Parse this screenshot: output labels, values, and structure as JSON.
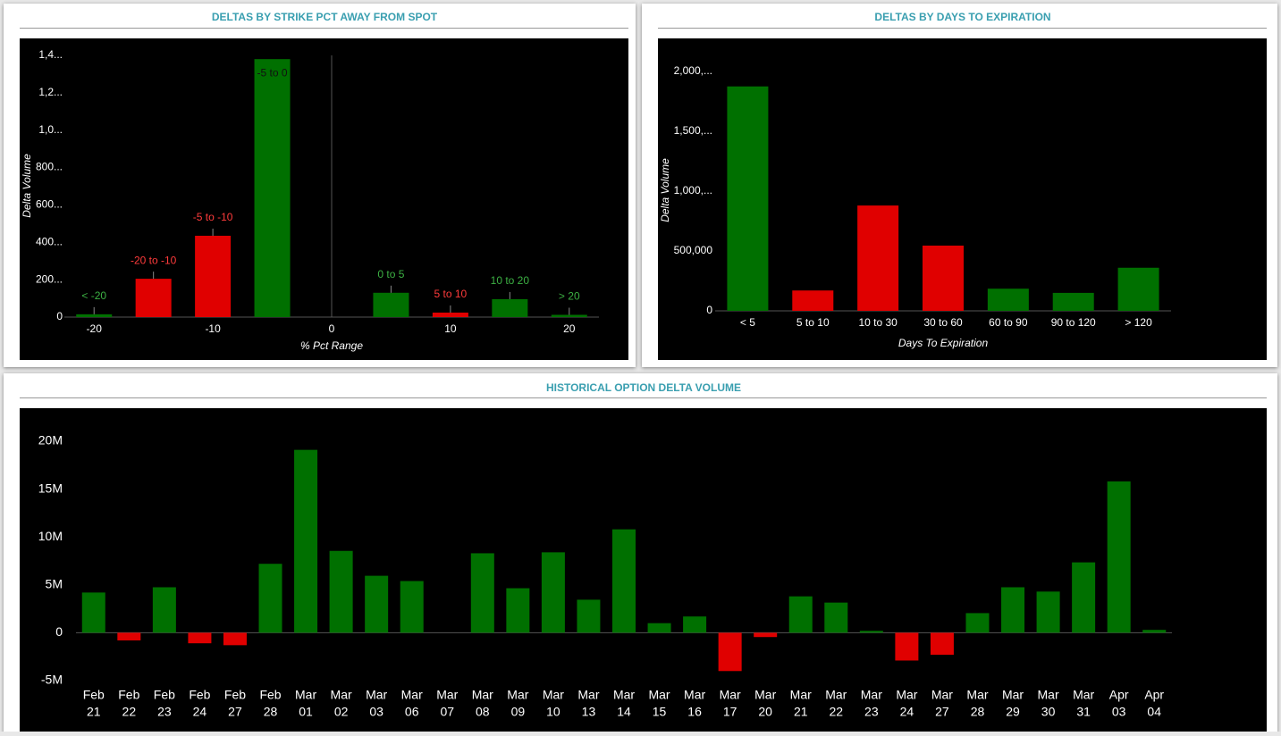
{
  "chart_data": [
    {
      "type": "bar",
      "title": "DELTAS BY STRIKE PCT AWAY FROM SPOT",
      "x_label": "% Pct Range",
      "y_label": "Delta Volume",
      "x": [
        -20,
        -15,
        -10,
        -5,
        5,
        10,
        15,
        20
      ],
      "bar_labels": [
        "< -20",
        "-20 to -10",
        "-5 to -10",
        "-5 to 0",
        "0 to 5",
        "5 to 10",
        "10 to 20",
        "> 20"
      ],
      "values": [
        15000,
        205000,
        435000,
        1380000,
        130000,
        24000,
        96000,
        12000
      ],
      "colors": [
        "#007000",
        "#e00000",
        "#e00000",
        "#007000",
        "#007000",
        "#e00000",
        "#007000",
        "#007000"
      ],
      "label_colors": [
        "#3cb043",
        "#ff3b3b",
        "#ff3b3b",
        "#111111",
        "#3cb043",
        "#ff3b3b",
        "#3cb043",
        "#3cb043"
      ],
      "xlim": [
        -22.5,
        22.5
      ],
      "xticks": [
        -20,
        -10,
        0,
        10,
        20
      ],
      "ylim": [
        0,
        1400000
      ],
      "yticks": [
        0,
        {
          "value": 200000,
          "label": "200..."
        },
        {
          "value": 400000,
          "label": "400..."
        },
        {
          "value": 600000,
          "label": "600..."
        },
        {
          "value": 800000,
          "label": "800..."
        },
        {
          "value": 1000000,
          "label": "1,0..."
        },
        {
          "value": 1200000,
          "label": "1,2..."
        },
        {
          "value": 1400000,
          "label": "1,4..."
        }
      ]
    },
    {
      "type": "bar",
      "title": "DELTAS BY DAYS TO EXPIRATION",
      "x_label": "Days To Expiration",
      "y_label": "Delta Volume",
      "categories": [
        "< 5",
        "5 to 10",
        "10 to 30",
        "30 to 60",
        "60 to 90",
        "90 to 120",
        "> 120"
      ],
      "values": [
        1875000,
        170000,
        880000,
        545000,
        185000,
        150000,
        360000
      ],
      "colors": [
        "#007000",
        "#e00000",
        "#e00000",
        "#e00000",
        "#007000",
        "#007000",
        "#007000"
      ],
      "ylim": [
        0,
        2000000
      ],
      "yticks": [
        0,
        {
          "value": 500000,
          "label": "500,000"
        },
        {
          "value": 1000000,
          "label": "1,000,..."
        },
        {
          "value": 1500000,
          "label": "1,500,..."
        },
        {
          "value": 2000000,
          "label": "2,000,..."
        }
      ]
    },
    {
      "type": "bar",
      "title": "HISTORICAL OPTION DELTA VOLUME",
      "categories": [
        [
          "Feb",
          "21"
        ],
        [
          "Feb",
          "22"
        ],
        [
          "Feb",
          "23"
        ],
        [
          "Feb",
          "24"
        ],
        [
          "Feb",
          "27"
        ],
        [
          "Feb",
          "28"
        ],
        [
          "Mar",
          "01"
        ],
        [
          "Mar",
          "02"
        ],
        [
          "Mar",
          "03"
        ],
        [
          "Mar",
          "06"
        ],
        [
          "Mar",
          "07"
        ],
        [
          "Mar",
          "08"
        ],
        [
          "Mar",
          "09"
        ],
        [
          "Mar",
          "10"
        ],
        [
          "Mar",
          "13"
        ],
        [
          "Mar",
          "14"
        ],
        [
          "Mar",
          "15"
        ],
        [
          "Mar",
          "16"
        ],
        [
          "Mar",
          "17"
        ],
        [
          "Mar",
          "20"
        ],
        [
          "Mar",
          "21"
        ],
        [
          "Mar",
          "22"
        ],
        [
          "Mar",
          "23"
        ],
        [
          "Mar",
          "24"
        ],
        [
          "Mar",
          "27"
        ],
        [
          "Mar",
          "28"
        ],
        [
          "Mar",
          "29"
        ],
        [
          "Mar",
          "30"
        ],
        [
          "Mar",
          "31"
        ],
        [
          "Apr",
          "03"
        ],
        [
          "Apr",
          "04"
        ]
      ],
      "values": [
        4200000,
        -800000,
        4750000,
        -1100000,
        -1300000,
        7200000,
        19100000,
        8550000,
        5950000,
        5400000,
        0,
        8300000,
        4650000,
        8400000,
        3450000,
        10800000,
        1000000,
        1700000,
        -4000000,
        -450000,
        3800000,
        3150000,
        200000,
        -2900000,
        -2300000,
        2050000,
        4750000,
        4300000,
        7350000,
        15800000,
        300000
      ],
      "positive_color": "#007000",
      "negative_color": "#e00000",
      "ylim": [
        -5000000,
        20000000
      ],
      "yticks": [
        {
          "value": -5000000,
          "label": "-5M"
        },
        0,
        {
          "value": 5000000,
          "label": "5M"
        },
        {
          "value": 10000000,
          "label": "10M"
        },
        {
          "value": 15000000,
          "label": "15M"
        },
        {
          "value": 20000000,
          "label": "20M"
        }
      ]
    }
  ]
}
